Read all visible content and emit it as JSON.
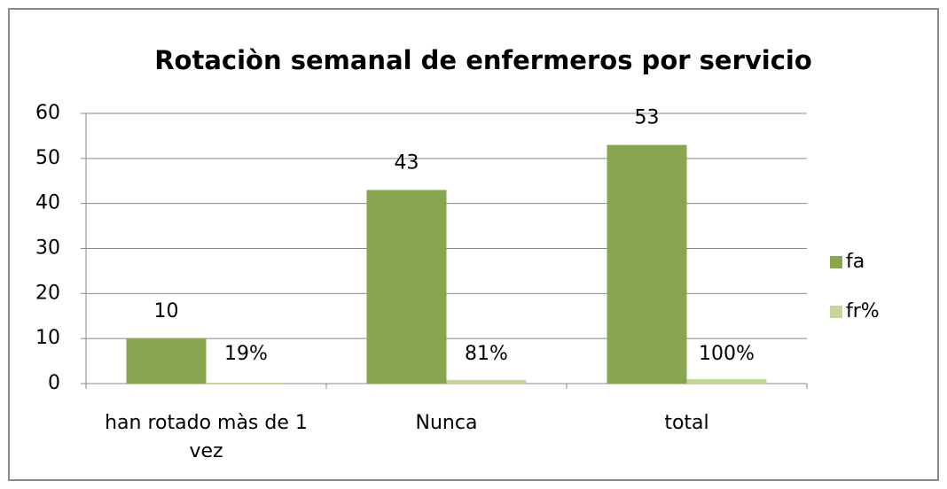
{
  "chart_data": {
    "type": "bar",
    "title": "Rotaciòn semanal de enfermeros por servicio",
    "categories": [
      "han rotado màs de 1 vez",
      "Nunca",
      "total"
    ],
    "series": [
      {
        "name": "fa",
        "color": "#88a64f",
        "values": [
          10,
          43,
          53
        ]
      },
      {
        "name": "fr%",
        "color": "#c3d69b",
        "values": [
          0.19,
          0.81,
          1
        ],
        "value_labels": [
          "19%",
          "81%",
          "100%"
        ]
      }
    ],
    "ylim": [
      0,
      60
    ],
    "yticks": [
      0,
      10,
      20,
      30,
      40,
      50,
      60
    ],
    "grid": true,
    "legend": "right"
  }
}
